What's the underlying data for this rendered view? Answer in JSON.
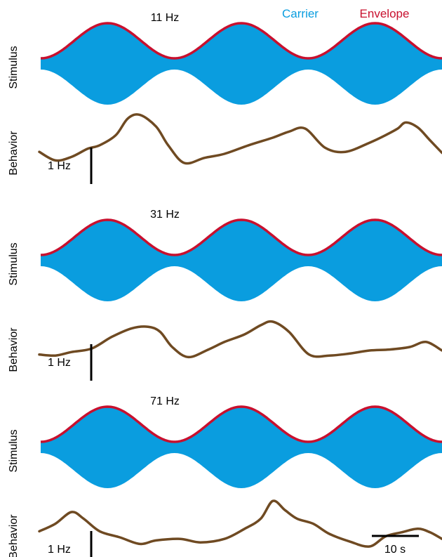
{
  "legend": {
    "carrier_label": "Carrier",
    "envelope_label": "Envelope",
    "placement": "top-right"
  },
  "colors": {
    "carrier": "#0a9ddf",
    "envelope": "#c8102e",
    "behavior": "#6f4a22",
    "scale_bar": "#000000",
    "text": "#000000"
  },
  "scale_bars": {
    "vertical_label": "1 Hz",
    "horizontal_label": "10 s"
  },
  "chart_data": [
    {
      "type": "line",
      "title": "11 Hz",
      "stimulus_label": "Stimulus",
      "behavior_label": "Behavior",
      "envelope_cycles": 3,
      "behavior_x": [
        0,
        0.04,
        0.08,
        0.12,
        0.15,
        0.19,
        0.22,
        0.25,
        0.29,
        0.32,
        0.36,
        0.41,
        0.46,
        0.52,
        0.58,
        0.62,
        0.66,
        0.71,
        0.76,
        0.82,
        0.86,
        0.89,
        0.91,
        0.94,
        0.97,
        1.0
      ],
      "behavior_y": [
        0.22,
        0.05,
        0.12,
        0.28,
        0.35,
        0.55,
        0.88,
        0.95,
        0.72,
        0.35,
        0.0,
        0.1,
        0.18,
        0.35,
        0.5,
        0.62,
        0.68,
        0.3,
        0.22,
        0.4,
        0.55,
        0.68,
        0.8,
        0.7,
        0.45,
        0.2
      ]
    },
    {
      "type": "line",
      "title": "31 Hz",
      "stimulus_label": "Stimulus",
      "behavior_label": "Behavior",
      "envelope_cycles": 3,
      "behavior_x": [
        0,
        0.04,
        0.08,
        0.13,
        0.18,
        0.23,
        0.27,
        0.3,
        0.33,
        0.37,
        0.42,
        0.46,
        0.51,
        0.55,
        0.58,
        0.62,
        0.67,
        0.72,
        0.77,
        0.82,
        0.87,
        0.92,
        0.96,
        1.0
      ],
      "behavior_y": [
        0.1,
        0.08,
        0.15,
        0.22,
        0.45,
        0.62,
        0.65,
        0.55,
        0.25,
        0.05,
        0.2,
        0.35,
        0.5,
        0.68,
        0.75,
        0.55,
        0.1,
        0.08,
        0.12,
        0.18,
        0.2,
        0.25,
        0.35,
        0.18
      ]
    },
    {
      "type": "line",
      "title": "71 Hz",
      "stimulus_label": "Stimulus",
      "behavior_label": "Behavior",
      "envelope_cycles": 3,
      "behavior_x": [
        0,
        0.04,
        0.08,
        0.11,
        0.15,
        0.2,
        0.25,
        0.29,
        0.35,
        0.4,
        0.46,
        0.51,
        0.55,
        0.58,
        0.61,
        0.64,
        0.68,
        0.72,
        0.77,
        0.82,
        0.86,
        0.9,
        0.94,
        0.97,
        1.0
      ],
      "behavior_y": [
        0.3,
        0.45,
        0.68,
        0.55,
        0.3,
        0.18,
        0.05,
        0.12,
        0.15,
        0.08,
        0.15,
        0.35,
        0.55,
        0.9,
        0.72,
        0.55,
        0.45,
        0.25,
        0.1,
        0.0,
        0.2,
        0.28,
        0.35,
        0.28,
        0.15
      ]
    }
  ]
}
